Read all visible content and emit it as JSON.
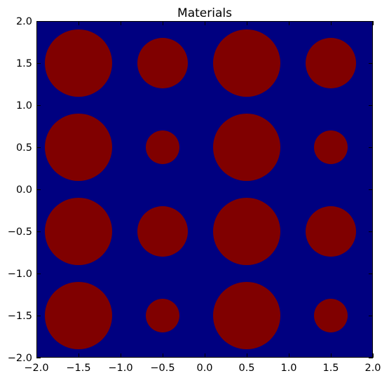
{
  "chart_data": {
    "type": "heatmap",
    "title": "Materials",
    "xlabel": "",
    "ylabel": "",
    "xlim": [
      -2.0,
      2.0
    ],
    "ylim": [
      -2.0,
      2.0
    ],
    "xticks": [
      -2.0,
      -1.5,
      -1.0,
      -0.5,
      0.0,
      0.5,
      1.0,
      1.5,
      2.0
    ],
    "yticks": [
      -2.0,
      -1.5,
      -1.0,
      -0.5,
      0.0,
      0.5,
      1.0,
      1.5,
      2.0
    ],
    "xtick_labels": [
      "−2.0",
      "−1.5",
      "−1.0",
      "−0.5",
      "0.0",
      "0.5",
      "1.0",
      "1.5",
      "2.0"
    ],
    "ytick_labels": [
      "−2.0",
      "−1.5",
      "−1.0",
      "−0.5",
      "0.0",
      "0.5",
      "1.0",
      "1.5",
      "2.0"
    ],
    "grid": false,
    "background_material_color": "#000080",
    "inclusion_material_color": "#800000",
    "circles": [
      {
        "cx": -1.5,
        "cy": 1.5,
        "r": 0.4
      },
      {
        "cx": -0.5,
        "cy": 1.5,
        "r": 0.3
      },
      {
        "cx": 0.5,
        "cy": 1.5,
        "r": 0.4
      },
      {
        "cx": 1.5,
        "cy": 1.5,
        "r": 0.3
      },
      {
        "cx": -1.5,
        "cy": 0.5,
        "r": 0.4
      },
      {
        "cx": -0.5,
        "cy": 0.5,
        "r": 0.2
      },
      {
        "cx": 0.5,
        "cy": 0.5,
        "r": 0.4
      },
      {
        "cx": 1.5,
        "cy": 0.5,
        "r": 0.2
      },
      {
        "cx": -1.5,
        "cy": -0.5,
        "r": 0.4
      },
      {
        "cx": -0.5,
        "cy": -0.5,
        "r": 0.3
      },
      {
        "cx": 0.5,
        "cy": -0.5,
        "r": 0.4
      },
      {
        "cx": 1.5,
        "cy": -0.5,
        "r": 0.3
      },
      {
        "cx": -1.5,
        "cy": -1.5,
        "r": 0.4
      },
      {
        "cx": -0.5,
        "cy": -1.5,
        "r": 0.2
      },
      {
        "cx": 0.5,
        "cy": -1.5,
        "r": 0.4
      },
      {
        "cx": 1.5,
        "cy": -1.5,
        "r": 0.2
      }
    ]
  }
}
